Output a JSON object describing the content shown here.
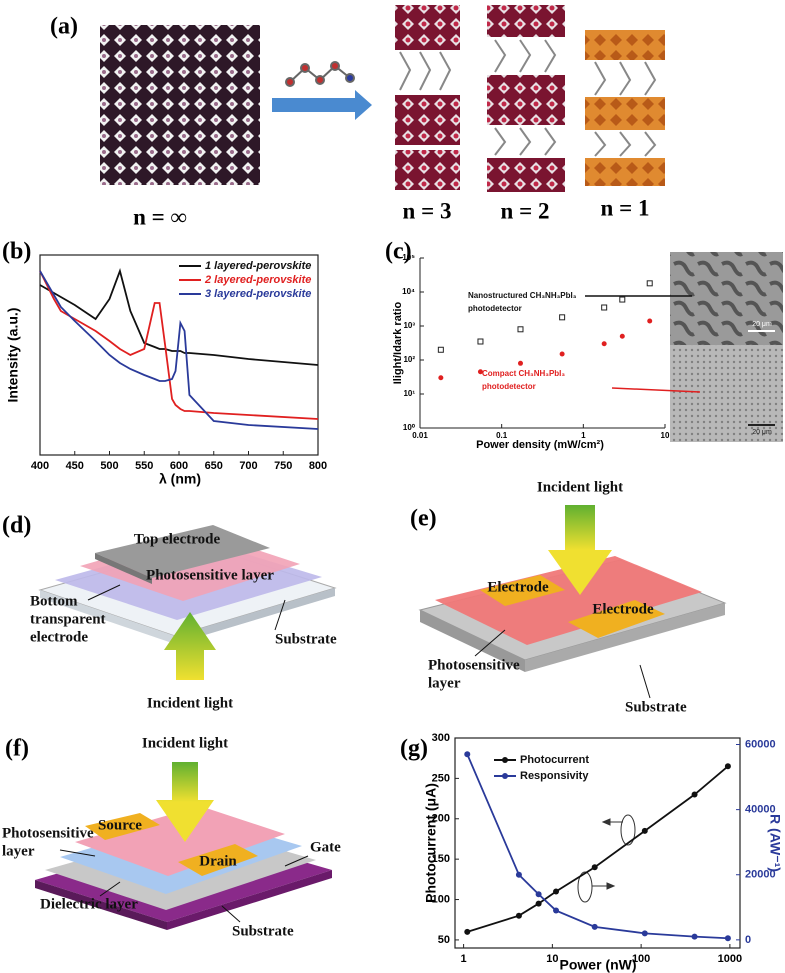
{
  "panel_labels": [
    "(a)",
    "(b)",
    "(c)",
    "(d)",
    "(e)",
    "(f)",
    "(g)"
  ],
  "panel_a": {
    "labels": [
      "n = ∞",
      "n = 3",
      "n = 2",
      "n = 1"
    ]
  },
  "panel_c_images": {
    "scale_labels": [
      "20 μm",
      "20 μm"
    ]
  },
  "panel_d": {
    "top_electrode": "Top electrode",
    "photosensitive": "Photosensitive layer",
    "bottom": [
      "Bottom",
      "transparent",
      "electrode"
    ],
    "substrate": "Substrate",
    "light": "Incident light"
  },
  "panel_e": {
    "light": "Incident light",
    "electrodes": [
      "Electrode",
      "Electrode"
    ],
    "photosensitive": [
      "Photosensitive",
      "layer"
    ],
    "substrate": "Substrate"
  },
  "panel_f": {
    "light": "Incident light",
    "photosensitive": [
      "Photosensitive",
      "layer"
    ],
    "source": "Source",
    "drain": "Drain",
    "gate": "Gate",
    "dielectric": "Dielectric layer",
    "substrate": "Substrate"
  },
  "chart_data": [
    {
      "type": "line",
      "xlabel": "λ (nm)",
      "ylabel": "Intensity (a.u.)",
      "x": [
        400,
        410,
        420,
        430,
        450,
        480,
        500,
        515,
        530,
        550,
        565,
        572,
        580,
        590,
        595,
        602,
        608,
        615,
        650,
        700,
        800
      ],
      "series": [
        {
          "name": "1 layered-perovskite",
          "color": "#111111",
          "values": [
            85,
            83,
            81,
            79,
            75,
            68,
            78,
            92,
            72,
            56,
            54,
            53,
            53,
            52,
            52,
            52,
            51,
            51,
            50,
            48,
            45
          ]
        },
        {
          "name": "2 layered-perovskite",
          "color": "#e02020",
          "values": [
            92,
            85,
            78,
            72,
            68,
            62,
            57,
            53,
            50,
            53,
            76,
            76,
            55,
            28,
            25,
            23,
            22,
            22,
            21,
            20,
            18
          ]
        },
        {
          "name": "3 layered-perovskite",
          "color": "#2a3a9a",
          "values": [
            92,
            86,
            80,
            74,
            67,
            57,
            50,
            46,
            43,
            40,
            38,
            37,
            37,
            38,
            42,
            66,
            62,
            30,
            17,
            15,
            13
          ]
        }
      ],
      "xlim": [
        400,
        800
      ],
      "xticks": [
        400,
        450,
        500,
        550,
        600,
        650,
        700,
        750,
        800
      ],
      "ylim": [
        0,
        100
      ],
      "legend": "upper right"
    },
    {
      "type": "scatter",
      "xlabel": "Power density (mW/cm²)",
      "ylabel": "Ilight/Idark ratio",
      "xlog": true,
      "ylog": true,
      "x": [
        0.018,
        0.055,
        0.17,
        0.55,
        1.8,
        3,
        6.5
      ],
      "series": [
        {
          "color": "#222222",
          "marker": "open-square",
          "values": [
            200,
            350,
            800,
            1800,
            3500,
            6000,
            18000
          ]
        },
        {
          "color": "#e02020",
          "marker": "circle",
          "values": [
            30,
            45,
            80,
            150,
            300,
            500,
            1400
          ]
        }
      ],
      "annotations": [
        {
          "lines": [
            "Nanostructured CH₃NH₃PbI₃",
            "photodetector"
          ],
          "color": "#111111"
        },
        {
          "lines": [
            "Compact CH₃NH₃PbI₃",
            "photodetector"
          ],
          "color": "#e02020"
        }
      ],
      "xlim": [
        0.01,
        10
      ],
      "xticks": [
        0.01,
        0.1,
        1,
        10
      ],
      "ylim": [
        1,
        100000
      ],
      "yticks": [
        {
          "value": 1,
          "label": "10⁰"
        },
        {
          "value": 10,
          "label": "10¹"
        },
        {
          "value": 100,
          "label": "10²"
        },
        {
          "value": 1000,
          "label": "10³"
        },
        {
          "value": 10000,
          "label": "10⁴"
        },
        {
          "value": 100000,
          "label": "10⁵"
        }
      ]
    },
    {
      "type": "line",
      "xlabel": "Power  (nW)",
      "ylabel": "Photocurrent  (μA)",
      "y2label": "R  (AW⁻¹)",
      "xlog": true,
      "x": [
        1.1,
        4.2,
        7,
        11,
        30,
        110,
        400,
        950
      ],
      "series": [
        {
          "name": "Photocurrent",
          "color": "#111111",
          "marker": "circle",
          "values": [
            60,
            80,
            95,
            110,
            140,
            185,
            230,
            265
          ]
        },
        {
          "name": "Responsivity",
          "color": "#2a3a9a",
          "marker": "circle",
          "axis": "y2",
          "values": [
            57000,
            20000,
            14000,
            9000,
            4000,
            2000,
            1000,
            500
          ]
        }
      ],
      "xlim": [
        0.8,
        1300
      ],
      "xticks": [
        1,
        10,
        100,
        1000
      ],
      "ylim": [
        40,
        300
      ],
      "yticks": [
        50,
        100,
        150,
        200,
        250,
        300
      ],
      "y2lim": [
        -2500,
        62000
      ],
      "y2ticks": [
        0,
        20000,
        40000,
        60000
      ],
      "y2color": "#2a3a9a",
      "legend": "upper left"
    }
  ]
}
